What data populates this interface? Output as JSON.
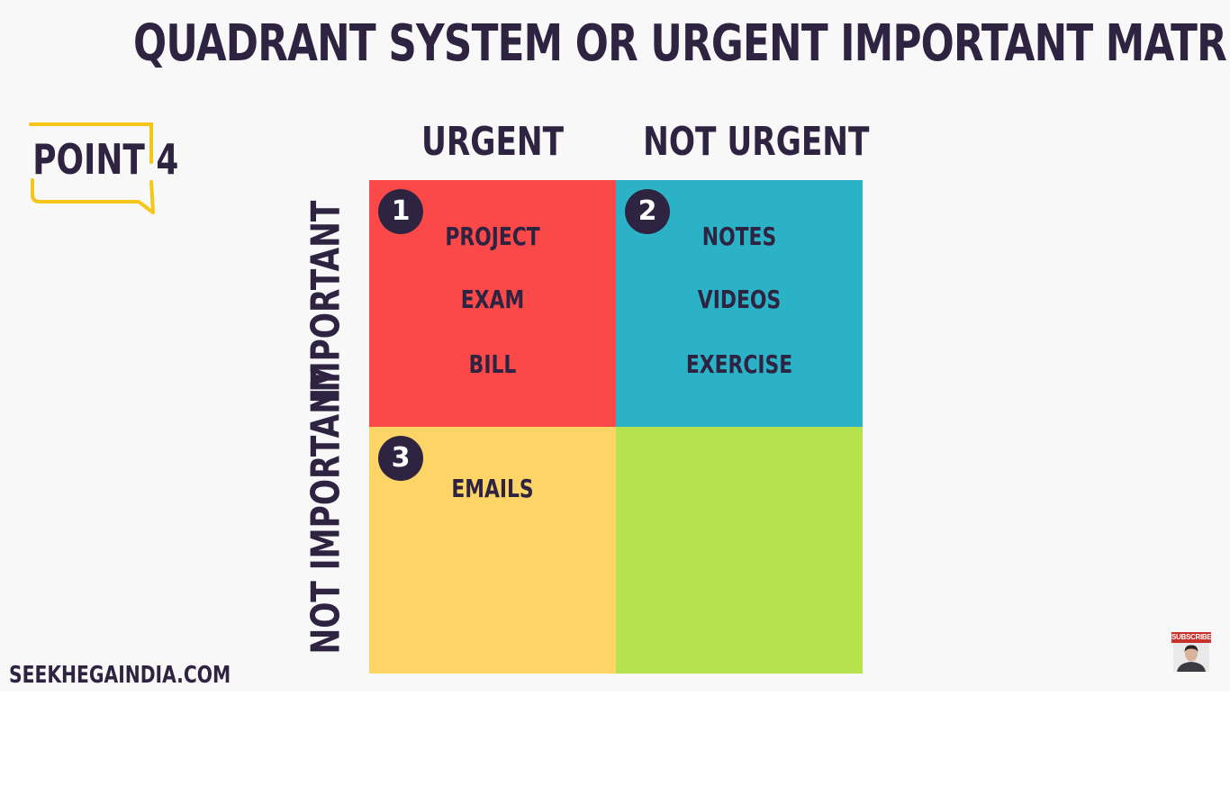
{
  "title": "QUADRANT SYSTEM  OR  URGENT IMPORTANT MATRIX",
  "badge": {
    "label": "POINT 4"
  },
  "columns": [
    "URGENT",
    "NOT URGENT"
  ],
  "rows": [
    "IMPORTANT",
    "NOT IMPORTANT"
  ],
  "quadrants": [
    {
      "number": "1",
      "items": [
        "PROJECT",
        "EXAM",
        "BILL"
      ],
      "color": "#fb4848"
    },
    {
      "number": "2",
      "items": [
        "NOTES",
        "VIDEOS",
        "EXERCISE"
      ],
      "color": "#2bb2c7"
    },
    {
      "number": "3",
      "items": [
        "EMAILS"
      ],
      "color": "#fdd466"
    },
    {
      "number": "",
      "items": [],
      "color": "#b5e24d"
    }
  ],
  "footer": "SEEKHEGAINDIA.COM",
  "subscribe": {
    "label": "SUBSCRIBE",
    "icon": "presenter-avatar-icon"
  },
  "colors": {
    "text": "#2e2441",
    "badge_outline": "#f5c518",
    "background": "#f8f8f9"
  }
}
